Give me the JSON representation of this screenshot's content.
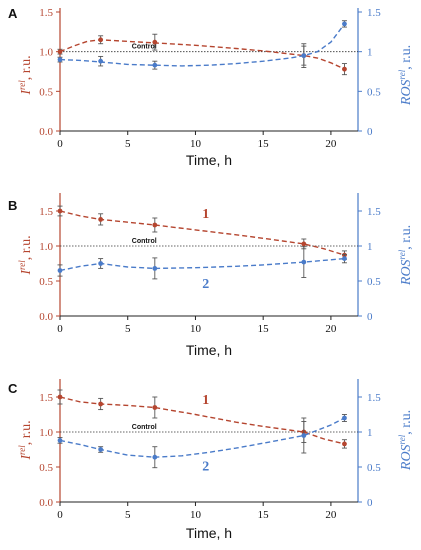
{
  "colors": {
    "red": "#b5452f",
    "blue": "#4a7bc9",
    "axis": "#222222"
  },
  "chart_data": [
    {
      "type": "line",
      "panel": "A",
      "xlabel": "Time, h",
      "ylabel_left": "I^rel, r.u.",
      "ylabel_right": "ROS^rel, r.u.",
      "xlim": [
        0,
        22
      ],
      "ylim_left": [
        0,
        1.5
      ],
      "ylim_right": [
        0,
        1.5
      ],
      "x_ticks": [
        0,
        5,
        10,
        15,
        20
      ],
      "y_ticks_left": [
        "0.0",
        "0.5",
        "1.0",
        "1.5"
      ],
      "y_ticks_right": [
        "0",
        "0.5",
        "1",
        "1.5"
      ],
      "reference_line": {
        "y": 1.0,
        "label": "Control"
      },
      "series_labels": [],
      "series": [
        {
          "axis": "left",
          "color": "red",
          "x": [
            0,
            3,
            7,
            18,
            21
          ],
          "y": [
            1.0,
            1.15,
            1.12,
            0.95,
            0.78
          ],
          "err": [
            0.03,
            0.05,
            0.1,
            0.12,
            0.07
          ],
          "curve": [
            [
              0,
              1.0
            ],
            [
              1,
              1.07
            ],
            [
              2,
              1.13
            ],
            [
              3,
              1.15
            ],
            [
              5,
              1.13
            ],
            [
              7,
              1.11
            ],
            [
              10,
              1.08
            ],
            [
              13,
              1.04
            ],
            [
              15,
              1.01
            ],
            [
              17,
              0.97
            ],
            [
              18,
              0.95
            ],
            [
              19,
              0.92
            ],
            [
              20,
              0.86
            ],
            [
              21,
              0.78
            ]
          ]
        },
        {
          "axis": "right",
          "color": "blue",
          "x": [
            0,
            3,
            7,
            18,
            21
          ],
          "y": [
            0.9,
            0.88,
            0.83,
            0.95,
            1.35
          ],
          "err": [
            0.03,
            0.06,
            0.05,
            0.15,
            0.04
          ],
          "curve": [
            [
              0,
              0.9
            ],
            [
              1.5,
              0.89
            ],
            [
              3,
              0.87
            ],
            [
              5,
              0.84
            ],
            [
              7,
              0.83
            ],
            [
              9,
              0.82
            ],
            [
              11,
              0.83
            ],
            [
              13,
              0.85
            ],
            [
              15,
              0.88
            ],
            [
              17,
              0.92
            ],
            [
              18,
              0.95
            ],
            [
              19,
              1.0
            ],
            [
              20,
              1.12
            ],
            [
              21,
              1.35
            ]
          ]
        }
      ]
    },
    {
      "type": "line",
      "panel": "B",
      "xlabel": "Time, h",
      "ylabel_left": "I^rel, r.u.",
      "ylabel_right": "ROS^rel, r.u.",
      "xlim": [
        0,
        22
      ],
      "ylim_left": [
        0,
        1.7
      ],
      "ylim_right": [
        0,
        1.7
      ],
      "x_ticks": [
        0,
        5,
        10,
        15,
        20
      ],
      "y_ticks_left": [
        "0.0",
        "0.5",
        "1.0",
        "1.5"
      ],
      "y_ticks_right": [
        "0",
        "0.5",
        "1",
        "1.5"
      ],
      "reference_line": {
        "y": 1.0,
        "label": "Control"
      },
      "series_labels": [
        {
          "text": "1",
          "color": "red",
          "x": 10.5,
          "y": 1.4
        },
        {
          "text": "2",
          "color": "blue",
          "x": 10.5,
          "y": 0.4
        }
      ],
      "series": [
        {
          "axis": "left",
          "color": "red",
          "x": [
            0,
            3,
            7,
            18,
            21
          ],
          "y": [
            1.5,
            1.38,
            1.3,
            1.03,
            0.87
          ],
          "err": [
            0.07,
            0.08,
            0.1,
            0.07,
            0.06
          ],
          "curve": [
            [
              0,
              1.5
            ],
            [
              1.5,
              1.43
            ],
            [
              3,
              1.38
            ],
            [
              5,
              1.34
            ],
            [
              7,
              1.3
            ],
            [
              10,
              1.23
            ],
            [
              13,
              1.16
            ],
            [
              15,
              1.11
            ],
            [
              18,
              1.03
            ],
            [
              19.5,
              0.96
            ],
            [
              21,
              0.87
            ]
          ]
        },
        {
          "axis": "right",
          "color": "blue",
          "x": [
            0,
            3,
            7,
            18,
            21
          ],
          "y": [
            0.65,
            0.75,
            0.68,
            0.77,
            0.82
          ],
          "err": [
            0.08,
            0.07,
            0.15,
            0.22,
            0.06
          ],
          "curve": [
            [
              0,
              0.65
            ],
            [
              1.5,
              0.71
            ],
            [
              3,
              0.75
            ],
            [
              5,
              0.7
            ],
            [
              7,
              0.68
            ],
            [
              10,
              0.69
            ],
            [
              13,
              0.71
            ],
            [
              15,
              0.73
            ],
            [
              18,
              0.77
            ],
            [
              21,
              0.82
            ]
          ]
        }
      ]
    },
    {
      "type": "line",
      "panel": "C",
      "xlabel": "Time, h",
      "ylabel_left": "I^rel, r.u.",
      "ylabel_right": "ROS^rel, r.u.",
      "xlim": [
        0,
        22
      ],
      "ylim_left": [
        0,
        1.7
      ],
      "ylim_right": [
        0,
        1.7
      ],
      "x_ticks": [
        0,
        5,
        10,
        15,
        20
      ],
      "y_ticks_left": [
        "0.0",
        "0.5",
        "1.0",
        "1.5"
      ],
      "y_ticks_right": [
        "0",
        "0.5",
        "1",
        "1.5"
      ],
      "reference_line": {
        "y": 1.0,
        "label": "Control"
      },
      "series_labels": [
        {
          "text": "1",
          "color": "red",
          "x": 10.5,
          "y": 1.4
        },
        {
          "text": "2",
          "color": "blue",
          "x": 10.5,
          "y": 0.45
        }
      ],
      "series": [
        {
          "axis": "left",
          "color": "red",
          "x": [
            0,
            3,
            7,
            18,
            21
          ],
          "y": [
            1.5,
            1.4,
            1.35,
            1.0,
            0.83
          ],
          "err": [
            0.1,
            0.08,
            0.15,
            0.15,
            0.06
          ],
          "curve": [
            [
              0,
              1.5
            ],
            [
              1.5,
              1.43
            ],
            [
              3,
              1.4
            ],
            [
              5,
              1.38
            ],
            [
              7,
              1.35
            ],
            [
              10,
              1.25
            ],
            [
              13,
              1.14
            ],
            [
              15,
              1.08
            ],
            [
              18,
              1.0
            ],
            [
              19.5,
              0.9
            ],
            [
              21,
              0.83
            ]
          ]
        },
        {
          "axis": "right",
          "color": "blue",
          "x": [
            0,
            3,
            7,
            18,
            21
          ],
          "y": [
            0.88,
            0.75,
            0.64,
            0.95,
            1.2
          ],
          "err": [
            0.04,
            0.04,
            0.15,
            0.25,
            0.05
          ],
          "curve": [
            [
              0,
              0.88
            ],
            [
              1.5,
              0.82
            ],
            [
              3,
              0.75
            ],
            [
              5,
              0.67
            ],
            [
              7,
              0.64
            ],
            [
              9,
              0.66
            ],
            [
              11,
              0.71
            ],
            [
              13,
              0.77
            ],
            [
              15,
              0.84
            ],
            [
              18,
              0.95
            ],
            [
              20,
              1.1
            ],
            [
              21,
              1.2
            ]
          ]
        }
      ]
    }
  ]
}
